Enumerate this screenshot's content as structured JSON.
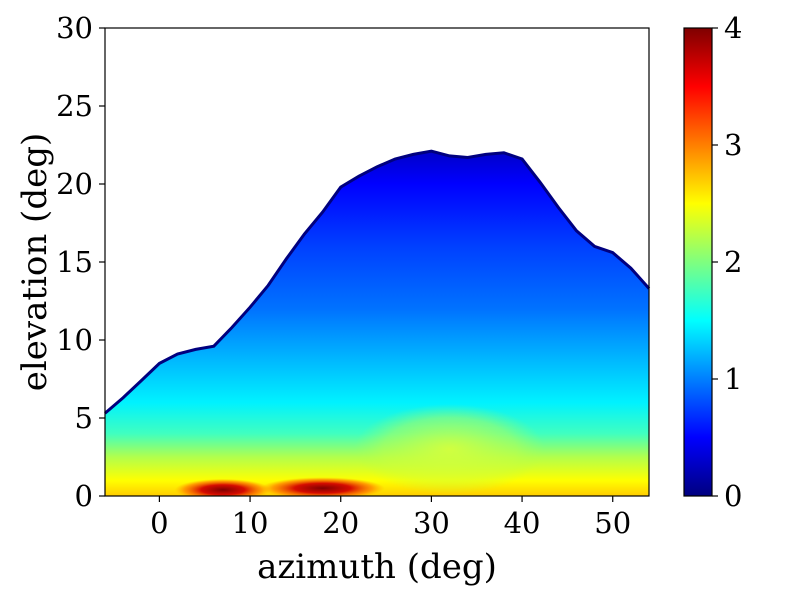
{
  "chart_data": {
    "type": "heatmap",
    "xlabel": "azimuth (deg)",
    "ylabel": "elevation (deg)",
    "xlim": [
      -6,
      54
    ],
    "ylim": [
      0,
      30
    ],
    "xticks": [
      0,
      10,
      20,
      30,
      40,
      50
    ],
    "yticks": [
      0,
      5,
      10,
      15,
      20,
      25,
      30
    ],
    "grid": false,
    "colormap": "jet",
    "colorbar": {
      "range": [
        0,
        4
      ],
      "ticks": [
        0,
        1,
        2,
        3,
        4
      ],
      "stops": [
        "#00007f",
        "#0000ff",
        "#007fff",
        "#00ffff",
        "#7fff7f",
        "#ffff00",
        "#ff7f00",
        "#ff0000",
        "#7f0000"
      ]
    },
    "upper_boundary": {
      "azimuth": [
        -6,
        -4,
        -2,
        0,
        2,
        4,
        6,
        8,
        10,
        12,
        14,
        16,
        18,
        20,
        22,
        24,
        26,
        28,
        30,
        32,
        34,
        36,
        38,
        40,
        42,
        44,
        46,
        48,
        50,
        52,
        54
      ],
      "elevation": [
        5.3,
        6.3,
        7.4,
        8.5,
        9.1,
        9.4,
        9.6,
        10.8,
        12.1,
        13.5,
        15.2,
        16.8,
        18.2,
        19.8,
        20.5,
        21.1,
        21.6,
        21.9,
        22.1,
        21.8,
        21.7,
        21.9,
        22.0,
        21.6,
        20.1,
        18.5,
        17.0,
        16.0,
        15.6,
        14.6,
        13.3
      ]
    },
    "value_profile": [
      {
        "elevation": 0.0,
        "value": 2.7
      },
      {
        "elevation": 1.0,
        "value": 2.5
      },
      {
        "elevation": 2.5,
        "value": 2.2
      },
      {
        "elevation": 4.0,
        "value": 1.75
      },
      {
        "elevation": 6.0,
        "value": 1.45
      },
      {
        "elevation": 9.0,
        "value": 1.2
      },
      {
        "elevation": 12.0,
        "value": 0.95
      },
      {
        "elevation": 16.0,
        "value": 0.75
      },
      {
        "elevation": 20.0,
        "value": 0.5
      },
      {
        "elevation": 22.0,
        "value": 0.3
      }
    ],
    "hotspots": [
      {
        "azimuth": 7,
        "elevation": 0.4,
        "value": 3.6
      },
      {
        "azimuth": 18,
        "elevation": 0.5,
        "value": 4.0
      },
      {
        "azimuth": 32,
        "elevation": 3.0,
        "value": 2.4
      }
    ]
  }
}
